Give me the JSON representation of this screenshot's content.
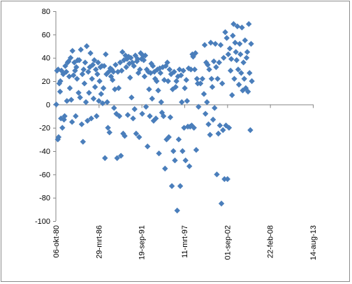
{
  "chart_data": {
    "type": "scatter",
    "title": "",
    "xlabel": "",
    "ylabel": "",
    "ylim": [
      -100,
      80
    ],
    "y_ticks": [
      80,
      60,
      40,
      20,
      0,
      -20,
      -40,
      -60,
      -80,
      -100
    ],
    "x_ticks": [
      "06-okt-80",
      "29-mrt-86",
      "19-sep-91",
      "11-mrt-97",
      "01-sep-02",
      "22-feb-08",
      "14-aug-13"
    ],
    "grid": false,
    "legend": "none",
    "marker_color": "#4a7ebb",
    "x_axis": "date",
    "x_range": [
      "1980-10-06",
      "2013-08-14"
    ],
    "points": [
      [
        "1980-10-25",
        0
      ],
      [
        "1980-11-30",
        29
      ],
      [
        "1981-01-20",
        30
      ],
      [
        "1981-01-05",
        -30
      ],
      [
        "1981-02-10",
        -28
      ],
      [
        "1981-03-15",
        18
      ],
      [
        "1981-04-20",
        11
      ],
      [
        "1981-05-05",
        20
      ],
      [
        "1981-06-01",
        -12
      ],
      [
        "1981-06-25",
        29
      ],
      [
        "1981-08-05",
        -20
      ],
      [
        "1981-09-15",
        26
      ],
      [
        "1981-10-20",
        -13
      ],
      [
        "1981-11-20",
        -10
      ],
      [
        "1981-12-20",
        33
      ],
      [
        "1982-02-05",
        28
      ],
      [
        "1982-03-05",
        3
      ],
      [
        "1982-04-10",
        36
      ],
      [
        "1982-05-20",
        37
      ],
      [
        "1982-06-20",
        24
      ],
      [
        "1982-07-20",
        14
      ],
      [
        "1982-08-25",
        40
      ],
      [
        "1982-09-25",
        4
      ],
      [
        "1982-11-01",
        -15
      ],
      [
        "1982-11-20",
        46
      ],
      [
        "1983-01-05",
        25
      ],
      [
        "1983-02-15",
        36
      ],
      [
        "1983-03-20",
        29
      ],
      [
        "1983-04-20",
        -10
      ],
      [
        "1983-05-20",
        32
      ],
      [
        "1983-06-20",
        22
      ],
      [
        "1983-07-25",
        38
      ],
      [
        "1983-09-01",
        10
      ],
      [
        "1983-10-05",
        38
      ],
      [
        "1983-11-10",
        6
      ],
      [
        "1983-12-15",
        47
      ],
      [
        "1984-01-25",
        -17
      ],
      [
        "1984-02-25",
        26
      ],
      [
        "1984-03-25",
        -32
      ],
      [
        "1984-04-25",
        30
      ],
      [
        "1984-06-01",
        18
      ],
      [
        "1984-07-05",
        36
      ],
      [
        "1984-08-10",
        2
      ],
      [
        "1984-09-15",
        50
      ],
      [
        "1984-10-20",
        -14
      ],
      [
        "1984-11-25",
        28
      ],
      [
        "1985-01-01",
        10
      ],
      [
        "1985-02-05",
        32
      ],
      [
        "1985-03-10",
        44
      ],
      [
        "1985-04-15",
        -12
      ],
      [
        "1985-05-20",
        22
      ],
      [
        "1985-06-25",
        34
      ],
      [
        "1985-07-30",
        5
      ],
      [
        "1985-09-05",
        38
      ],
      [
        "1985-10-10",
        15
      ],
      [
        "1985-11-15",
        30
      ],
      [
        "1985-12-20",
        -10
      ],
      [
        "1986-01-25",
        26
      ],
      [
        "1986-03-01",
        36
      ],
      [
        "1986-04-05",
        3
      ],
      [
        "1986-05-10",
        20
      ],
      [
        "1986-06-15",
        32
      ],
      [
        "1986-07-20",
        9
      ],
      [
        "1986-08-25",
        33
      ],
      [
        "1986-09-30",
        1
      ],
      [
        "1986-11-05",
        14
      ],
      [
        "1986-12-10",
        33
      ],
      [
        "1987-01-15",
        -46
      ],
      [
        "1987-02-20",
        43
      ],
      [
        "1987-03-25",
        26
      ],
      [
        "1987-04-30",
        2
      ],
      [
        "1987-06-05",
        -20
      ],
      [
        "1987-07-10",
        28
      ],
      [
        "1987-08-15",
        -24
      ],
      [
        "1987-09-20",
        31
      ],
      [
        "1987-10-25",
        24
      ],
      [
        "1987-12-01",
        30
      ],
      [
        "1988-01-05",
        21
      ],
      [
        "1988-02-10",
        28
      ],
      [
        "1988-03-15",
        -3
      ],
      [
        "1988-04-20",
        13
      ],
      [
        "1988-05-25",
        34
      ],
      [
        "1988-06-30",
        -8
      ],
      [
        "1988-08-05",
        -46
      ],
      [
        "1988-09-10",
        28
      ],
      [
        "1988-10-15",
        14
      ],
      [
        "1988-11-20",
        -10
      ],
      [
        "1988-12-25",
        36
      ],
      [
        "1989-01-30",
        -44
      ],
      [
        "1989-03-05",
        29
      ],
      [
        "1989-04-10",
        45
      ],
      [
        "1989-05-15",
        -25
      ],
      [
        "1989-06-20",
        38
      ],
      [
        "1989-07-25",
        -27
      ],
      [
        "1989-08-30",
        42
      ],
      [
        "1989-10-05",
        32
      ],
      [
        "1989-11-10",
        39
      ],
      [
        "1989-12-15",
        -9
      ],
      [
        "1990-01-20",
        41
      ],
      [
        "1990-02-25",
        35
      ],
      [
        "1990-04-01",
        23
      ],
      [
        "1990-05-05",
        40
      ],
      [
        "1990-06-10",
        6
      ],
      [
        "1990-07-15",
        36
      ],
      [
        "1990-08-20",
        -12
      ],
      [
        "1990-09-25",
        33
      ],
      [
        "1990-10-30",
        -4
      ],
      [
        "1990-12-05",
        42
      ],
      [
        "1991-01-10",
        -25
      ],
      [
        "1991-02-15",
        37
      ],
      [
        "1991-03-20",
        39
      ],
      [
        "1991-04-25",
        27
      ],
      [
        "1991-06-01",
        -28
      ],
      [
        "1991-07-05",
        30
      ],
      [
        "1991-08-10",
        44
      ],
      [
        "1991-09-15",
        39
      ],
      [
        "1991-10-20",
        -8
      ],
      [
        "1991-11-25",
        42
      ],
      [
        "1992-01-01",
        38
      ],
      [
        "1992-02-05",
        24
      ],
      [
        "1992-03-10",
        42
      ],
      [
        "1992-04-15",
        -2
      ],
      [
        "1992-05-20",
        30
      ],
      [
        "1992-06-25",
        -36
      ],
      [
        "1992-07-30",
        28
      ],
      [
        "1992-09-05",
        13
      ],
      [
        "1992-10-10",
        -10
      ],
      [
        "1992-11-15",
        27
      ],
      [
        "1992-12-20",
        35
      ],
      [
        "1993-01-25",
        5
      ],
      [
        "1993-03-01",
        33
      ],
      [
        "1993-04-05",
        -14
      ],
      [
        "1993-05-10",
        28
      ],
      [
        "1993-06-15",
        22
      ],
      [
        "1993-07-20",
        -12
      ],
      [
        "1993-08-25",
        20
      ],
      [
        "1993-09-30",
        30
      ],
      [
        "1993-11-05",
        12
      ],
      [
        "1993-12-10",
        -42
      ],
      [
        "1994-01-15",
        31
      ],
      [
        "1994-02-20",
        27
      ],
      [
        "1994-03-25",
        2
      ],
      [
        "1994-04-30",
        -7
      ],
      [
        "1994-06-05",
        32
      ],
      [
        "1994-07-10",
        -10
      ],
      [
        "1994-08-15",
        21
      ],
      [
        "1994-09-20",
        -55
      ],
      [
        "1994-10-25",
        33
      ],
      [
        "1994-12-01",
        -30
      ],
      [
        "1995-01-05",
        36
      ],
      [
        "1995-02-10",
        20
      ],
      [
        "1995-03-15",
        -28
      ],
      [
        "1995-04-20",
        30
      ],
      [
        "1995-05-25",
        -11
      ],
      [
        "1995-06-30",
        26
      ],
      [
        "1995-08-05",
        -70
      ],
      [
        "1995-09-10",
        13
      ],
      [
        "1995-10-15",
        -40
      ],
      [
        "1995-11-20",
        28
      ],
      [
        "1995-12-25",
        -48
      ],
      [
        "1996-01-30",
        15
      ],
      [
        "1996-03-05",
        20
      ],
      [
        "1996-04-10",
        -91
      ],
      [
        "1996-05-15",
        24
      ],
      [
        "1996-06-20",
        -30
      ],
      [
        "1996-07-25",
        30
      ],
      [
        "1996-08-30",
        -70
      ],
      [
        "1996-10-05",
        25
      ],
      [
        "1996-11-10",
        2
      ],
      [
        "1996-12-15",
        -40
      ],
      [
        "1997-01-20",
        29
      ],
      [
        "1997-02-25",
        -20
      ],
      [
        "1997-03-30",
        14
      ],
      [
        "1997-05-05",
        -48
      ],
      [
        "1997-06-10",
        21
      ],
      [
        "1997-07-15",
        3
      ],
      [
        "1997-08-20",
        -19
      ],
      [
        "1997-09-25",
        31
      ],
      [
        "1997-10-30",
        -53
      ],
      [
        "1997-12-05",
        -19
      ],
      [
        "1998-01-10",
        30
      ],
      [
        "1998-02-15",
        -18
      ],
      [
        "1998-03-20",
        43
      ],
      [
        "1998-04-25",
        41
      ],
      [
        "1998-06-01",
        -20
      ],
      [
        "1998-07-05",
        30
      ],
      [
        "1998-08-10",
        44
      ],
      [
        "1998-09-15",
        -39
      ],
      [
        "1998-10-20",
        22
      ],
      [
        "1998-11-25",
        18
      ],
      [
        "1999-01-01",
        -2
      ],
      [
        "1999-04-01",
        18
      ],
      [
        "1999-07-01",
        22
      ],
      [
        "1999-09-10",
        9
      ],
      [
        "1999-10-15",
        51
      ],
      [
        "1999-11-20",
        -8
      ],
      [
        "1999-12-25",
        36
      ],
      [
        "2000-01-30",
        2
      ],
      [
        "2000-03-05",
        34
      ],
      [
        "2000-04-10",
        -17
      ],
      [
        "2000-05-15",
        30
      ],
      [
        "2000-06-20",
        -26
      ],
      [
        "2000-07-25",
        53
      ],
      [
        "2000-08-30",
        22
      ],
      [
        "2000-10-05",
        15
      ],
      [
        "2000-11-10",
        -13
      ],
      [
        "2000-12-15",
        37
      ],
      [
        "2001-01-20",
        -3
      ],
      [
        "2001-02-25",
        52
      ],
      [
        "2001-04-01",
        32
      ],
      [
        "2001-05-05",
        -60
      ],
      [
        "2001-06-10",
        22
      ],
      [
        "2001-07-15",
        -25
      ],
      [
        "2001-08-20",
        36
      ],
      [
        "2001-09-25",
        -18
      ],
      [
        "2001-10-30",
        51
      ],
      [
        "2001-12-05",
        -85
      ],
      [
        "2002-01-10",
        18
      ],
      [
        "2002-02-15",
        -22
      ],
      [
        "2002-03-20",
        40
      ],
      [
        "2002-04-25",
        -64
      ],
      [
        "2002-06-01",
        62
      ],
      [
        "2002-07-05",
        -18
      ],
      [
        "2002-08-10",
        57
      ],
      [
        "2002-09-15",
        -64
      ],
      [
        "2002-10-20",
        43
      ],
      [
        "2002-11-25",
        -20
      ],
      [
        "2003-01-01",
        48
      ],
      [
        "2003-02-05",
        29
      ],
      [
        "2003-03-10",
        39
      ],
      [
        "2003-04-15",
        8
      ],
      [
        "2003-05-20",
        59
      ],
      [
        "2003-06-25",
        69
      ],
      [
        "2003-07-30",
        22
      ],
      [
        "2003-09-05",
        53
      ],
      [
        "2003-10-10",
        45
      ],
      [
        "2003-11-15",
        38
      ],
      [
        "2003-12-20",
        67
      ],
      [
        "2004-01-25",
        30
      ],
      [
        "2004-03-01",
        17
      ],
      [
        "2004-04-05",
        52
      ],
      [
        "2004-05-10",
        43
      ],
      [
        "2004-06-15",
        27
      ],
      [
        "2004-07-20",
        66
      ],
      [
        "2004-08-25",
        12
      ],
      [
        "2004-09-30",
        36
      ],
      [
        "2004-11-05",
        22
      ],
      [
        "2004-12-10",
        55
      ],
      [
        "2005-01-15",
        14
      ],
      [
        "2005-02-20",
        40
      ],
      [
        "2005-03-25",
        45
      ],
      [
        "2005-04-30",
        11
      ],
      [
        "2005-06-05",
        69
      ],
      [
        "2005-07-10",
        27
      ],
      [
        "2005-08-15",
        -22
      ],
      [
        "2005-09-20",
        52
      ],
      [
        "2005-10-25",
        20
      ]
    ]
  }
}
